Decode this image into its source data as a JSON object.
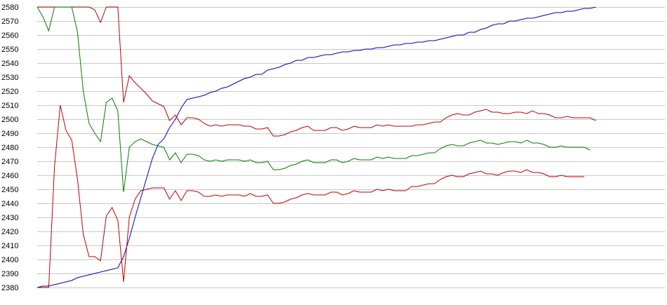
{
  "chart_data": {
    "type": "line",
    "title": "",
    "xlabel": "",
    "ylabel": "",
    "ylim": [
      2380,
      2580
    ],
    "y_ticks": [
      2380,
      2390,
      2400,
      2410,
      2420,
      2430,
      2440,
      2450,
      2460,
      2470,
      2480,
      2490,
      2500,
      2510,
      2520,
      2530,
      2540,
      2550,
      2560,
      2570,
      2580
    ],
    "grid": "horizontal",
    "legend": "none",
    "x_points": 110,
    "series": [
      {
        "color": "#0000c0",
        "values": [
          2380,
          2381,
          2381,
          2382,
          2383,
          2384,
          2385,
          2387,
          2388,
          2389,
          2390,
          2391,
          2392,
          2393,
          2394,
          2402,
          2415,
          2430,
          2444,
          2458,
          2472,
          2482,
          2486,
          2494,
          2500,
          2508,
          2514,
          2515,
          2516,
          2517,
          2519,
          2520,
          2522,
          2523,
          2525,
          2527,
          2529,
          2530,
          2532,
          2532,
          2535,
          2536,
          2537,
          2539,
          2540,
          2542,
          2542,
          2544,
          2544,
          2545,
          2546,
          2546,
          2547,
          2548,
          2548,
          2549,
          2549,
          2550,
          2550,
          2551,
          2551,
          2552,
          2553,
          2553,
          2554,
          2554,
          2555,
          2555,
          2556,
          2556,
          2557,
          2558,
          2559,
          2560,
          2560,
          2562,
          2562,
          2564,
          2565,
          2567,
          2568,
          2568,
          2570,
          2570,
          2571,
          2572,
          2572,
          2573,
          2574,
          2575,
          2576,
          2576,
          2577,
          2577,
          2578,
          2579,
          2579,
          2580
        ]
      },
      {
        "color": "#c00000",
        "values": [
          2580,
          2580,
          2580,
          2580,
          2580,
          2580,
          2580,
          2580,
          2580,
          2580,
          2578,
          2569,
          2580,
          2580,
          2580,
          2512,
          2531,
          2526,
          2522,
          2518,
          2513,
          2511,
          2509,
          2499,
          2503,
          2496,
          2501,
          2501,
          2500,
          2497,
          2495,
          2496,
          2495,
          2496,
          2496,
          2496,
          2495,
          2495,
          2493,
          2493,
          2494,
          2488,
          2488,
          2489,
          2491,
          2492,
          2494,
          2495,
          2492,
          2492,
          2492,
          2494,
          2494,
          2492,
          2493,
          2495,
          2494,
          2494,
          2494,
          2496,
          2495,
          2496,
          2495,
          2495,
          2495,
          2495,
          2496,
          2496,
          2497,
          2498,
          2498,
          2501,
          2503,
          2504,
          2503,
          2503,
          2505,
          2506,
          2507,
          2505,
          2505,
          2504,
          2504,
          2505,
          2505,
          2504,
          2506,
          2504,
          2504,
          2503,
          2501,
          2501,
          2502,
          2501,
          2501,
          2501,
          2501,
          2499
        ]
      },
      {
        "color": "#008000",
        "values": [
          2580,
          2573,
          2563,
          2580,
          2580,
          2580,
          2580,
          2562,
          2520,
          2497,
          2490,
          2484,
          2512,
          2515,
          2506,
          2448,
          2480,
          2484,
          2486,
          2484,
          2482,
          2481,
          2480,
          2471,
          2476,
          2469,
          2475,
          2475,
          2474,
          2471,
          2470,
          2471,
          2470,
          2471,
          2471,
          2471,
          2470,
          2471,
          2469,
          2469,
          2470,
          2464,
          2464,
          2465,
          2467,
          2468,
          2470,
          2471,
          2469,
          2469,
          2469,
          2471,
          2471,
          2469,
          2470,
          2472,
          2471,
          2471,
          2471,
          2473,
          2472,
          2473,
          2472,
          2472,
          2472,
          2474,
          2474,
          2475,
          2476,
          2476,
          2479,
          2481,
          2482,
          2481,
          2481,
          2483,
          2484,
          2485,
          2483,
          2483,
          2482,
          2483,
          2484,
          2484,
          2483,
          2485,
          2483,
          2483,
          2482,
          2480,
          2480,
          2481,
          2480,
          2480,
          2480,
          2480,
          2478
        ]
      },
      {
        "color": "#c00000",
        "values": [
          2380,
          2380,
          2380,
          2466,
          2510,
          2492,
          2485,
          2457,
          2418,
          2402,
          2402,
          2399,
          2431,
          2437,
          2428,
          2384,
          2430,
          2443,
          2449,
          2450,
          2451,
          2451,
          2451,
          2443,
          2449,
          2442,
          2449,
          2449,
          2448,
          2445,
          2445,
          2446,
          2445,
          2446,
          2446,
          2446,
          2445,
          2447,
          2445,
          2445,
          2446,
          2440,
          2440,
          2441,
          2443,
          2444,
          2446,
          2447,
          2446,
          2446,
          2446,
          2448,
          2448,
          2446,
          2447,
          2449,
          2448,
          2448,
          2448,
          2450,
          2449,
          2450,
          2449,
          2449,
          2449,
          2452,
          2452,
          2453,
          2454,
          2454,
          2457,
          2459,
          2460,
          2459,
          2459,
          2461,
          2462,
          2463,
          2461,
          2461,
          2460,
          2462,
          2463,
          2463,
          2462,
          2464,
          2462,
          2462,
          2461,
          2459,
          2459,
          2460,
          2459,
          2459,
          2459,
          2459
        ]
      }
    ]
  }
}
